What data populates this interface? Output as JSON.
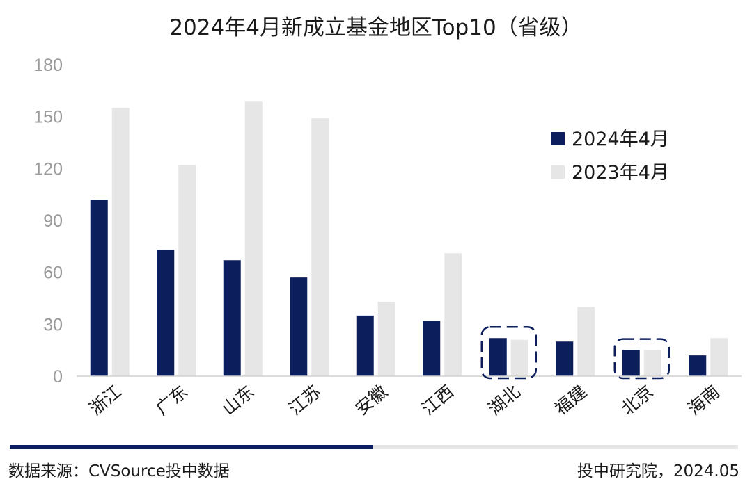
{
  "chart_data": {
    "type": "bar",
    "title": "2024年4月新成立基金地区Top10（省级）",
    "categories": [
      "浙江",
      "广东",
      "山东",
      "江苏",
      "安徽",
      "江西",
      "湖北",
      "福建",
      "北京",
      "海南"
    ],
    "series": [
      {
        "name": "2024年4月",
        "color": "#0c1f5c",
        "values": [
          102,
          73,
          67,
          57,
          35,
          32,
          22,
          20,
          15,
          12
        ]
      },
      {
        "name": "2023年4月",
        "color": "#e6e6e6",
        "values": [
          155,
          122,
          159,
          149,
          43,
          71,
          21,
          40,
          15,
          22
        ]
      }
    ],
    "yticks": [
      0,
      30,
      60,
      90,
      120,
      150,
      180
    ],
    "ylim": [
      0,
      180
    ],
    "highlighted_categories": [
      "湖北",
      "北京"
    ],
    "legend_position": "right",
    "grid": false
  },
  "footer": {
    "source": "数据来源：CVSource投中数据",
    "credit": "投中研究院，2024.05"
  }
}
